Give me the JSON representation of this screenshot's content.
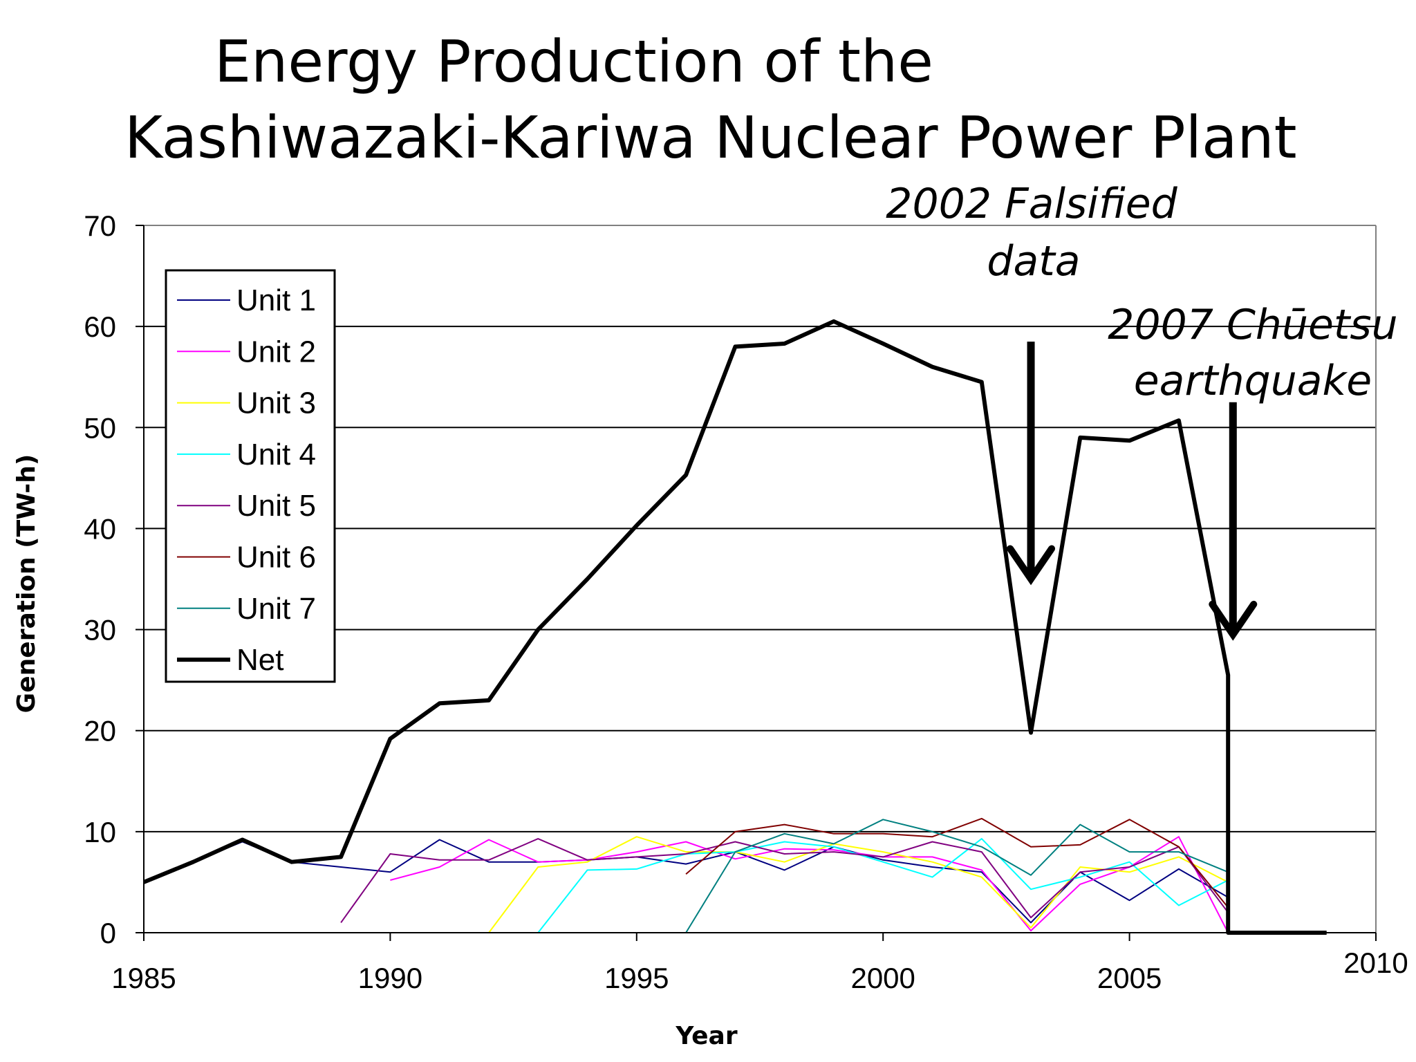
{
  "chart_data": {
    "type": "line",
    "title": [
      "Energy Production of the",
      "Kashiwazaki-Kariwa Nuclear Power Plant"
    ],
    "xlabel": "Year",
    "ylabel": "Generation (TW-h)",
    "xlim": [
      1985,
      2010
    ],
    "ylim": [
      0,
      70
    ],
    "x_ticks": [
      1985,
      1990,
      1995,
      2000,
      2005,
      2010
    ],
    "y_ticks": [
      0,
      10,
      20,
      30,
      40,
      50,
      60,
      70
    ],
    "grid": "horizontal",
    "legend_position": "top-left",
    "series": [
      {
        "name": "Unit 1",
        "color": "#000080",
        "width": 2,
        "points": [
          [
            1985,
            5
          ],
          [
            1986,
            7
          ],
          [
            1987,
            9
          ],
          [
            1988,
            7
          ],
          [
            1989,
            6.5
          ],
          [
            1990,
            6
          ],
          [
            1991,
            9.2
          ],
          [
            1992,
            7
          ],
          [
            1993,
            7
          ],
          [
            1994,
            7.2
          ],
          [
            1995,
            7.5
          ],
          [
            1996,
            6.8
          ],
          [
            1997,
            8
          ],
          [
            1998,
            6.2
          ],
          [
            1999,
            8.5
          ],
          [
            2000,
            7.2
          ],
          [
            2001,
            6.5
          ],
          [
            2002,
            6
          ],
          [
            2003,
            1
          ],
          [
            2004,
            6
          ],
          [
            2005,
            3.2
          ],
          [
            2006,
            6.3
          ],
          [
            2007,
            3.5
          ]
        ]
      },
      {
        "name": "Unit 2",
        "color": "#ff00ff",
        "width": 2,
        "points": [
          [
            1990,
            5.2
          ],
          [
            1991,
            6.5
          ],
          [
            1992,
            9.2
          ],
          [
            1993,
            7
          ],
          [
            1994,
            7.2
          ],
          [
            1995,
            8
          ],
          [
            1996,
            9
          ],
          [
            1997,
            7.3
          ],
          [
            1998,
            8.3
          ],
          [
            1999,
            8.2
          ],
          [
            2000,
            7.5
          ],
          [
            2001,
            7.5
          ],
          [
            2002,
            6.2
          ],
          [
            2003,
            0.2
          ],
          [
            2004,
            4.8
          ],
          [
            2005,
            6.5
          ],
          [
            2006,
            9.5
          ],
          [
            2007,
            0
          ]
        ]
      },
      {
        "name": "Unit 3",
        "color": "#ffff00",
        "width": 2,
        "points": [
          [
            1992,
            0
          ],
          [
            1993,
            6.5
          ],
          [
            1994,
            7
          ],
          [
            1995,
            9.5
          ],
          [
            1996,
            8
          ],
          [
            1997,
            8
          ],
          [
            1998,
            7
          ],
          [
            1999,
            8.8
          ],
          [
            2000,
            8
          ],
          [
            2001,
            7
          ],
          [
            2002,
            5.5
          ],
          [
            2003,
            0.5
          ],
          [
            2004,
            6.5
          ],
          [
            2005,
            6
          ],
          [
            2006,
            7.5
          ],
          [
            2007,
            5
          ]
        ]
      },
      {
        "name": "Unit 4",
        "color": "#00ffff",
        "width": 2,
        "points": [
          [
            1993,
            0
          ],
          [
            1994,
            6.2
          ],
          [
            1995,
            6.3
          ],
          [
            1996,
            7.8
          ],
          [
            1997,
            8
          ],
          [
            1998,
            9
          ],
          [
            1999,
            8.5
          ],
          [
            2000,
            7
          ],
          [
            2001,
            5.5
          ],
          [
            2002,
            9.3
          ],
          [
            2003,
            4.3
          ],
          [
            2004,
            5.5
          ],
          [
            2005,
            7
          ],
          [
            2006,
            2.7
          ],
          [
            2007,
            5.2
          ]
        ]
      },
      {
        "name": "Unit 5",
        "color": "#800080",
        "width": 2,
        "points": [
          [
            1989,
            1
          ],
          [
            1990,
            7.8
          ],
          [
            1991,
            7.2
          ],
          [
            1992,
            7.2
          ],
          [
            1993,
            9.3
          ],
          [
            1994,
            7.2
          ],
          [
            1995,
            7.5
          ],
          [
            1996,
            7.8
          ],
          [
            1997,
            9
          ],
          [
            1998,
            7.8
          ],
          [
            1999,
            8
          ],
          [
            2000,
            7.5
          ],
          [
            2001,
            9
          ],
          [
            2002,
            8
          ],
          [
            2003,
            1.5
          ],
          [
            2004,
            6
          ],
          [
            2005,
            6.5
          ],
          [
            2006,
            8.5
          ],
          [
            2007,
            2
          ]
        ]
      },
      {
        "name": "Unit 6",
        "color": "#800000",
        "width": 2,
        "points": [
          [
            1996,
            5.8
          ],
          [
            1997,
            10
          ],
          [
            1998,
            10.7
          ],
          [
            1999,
            9.8
          ],
          [
            2000,
            9.8
          ],
          [
            2001,
            9.5
          ],
          [
            2002,
            11.3
          ],
          [
            2003,
            8.5
          ],
          [
            2004,
            8.7
          ],
          [
            2005,
            11.2
          ],
          [
            2006,
            8.5
          ],
          [
            2007,
            2.5
          ]
        ]
      },
      {
        "name": "Unit 7",
        "color": "#008080",
        "width": 2,
        "points": [
          [
            1996,
            0
          ],
          [
            1997,
            8
          ],
          [
            1998,
            9.8
          ],
          [
            1999,
            8.8
          ],
          [
            2000,
            11.2
          ],
          [
            2001,
            10
          ],
          [
            2002,
            8.5
          ],
          [
            2003,
            5.7
          ],
          [
            2004,
            10.7
          ],
          [
            2005,
            8
          ],
          [
            2006,
            8
          ],
          [
            2007,
            6
          ]
        ]
      },
      {
        "name": "Net",
        "color": "#000000",
        "width": 6,
        "points": [
          [
            1985,
            5
          ],
          [
            1986,
            7
          ],
          [
            1987,
            9.2
          ],
          [
            1988,
            7
          ],
          [
            1989,
            7.5
          ],
          [
            1990,
            19.2
          ],
          [
            1991,
            22.7
          ],
          [
            1992,
            23
          ],
          [
            1993,
            30
          ],
          [
            1994,
            35
          ],
          [
            1995,
            40.3
          ],
          [
            1996,
            45.3
          ],
          [
            1997,
            58
          ],
          [
            1998,
            58.3
          ],
          [
            1999,
            60.5
          ],
          [
            2000,
            58.3
          ],
          [
            2001,
            56
          ],
          [
            2002,
            54.5
          ],
          [
            2003,
            19.8
          ],
          [
            2004,
            49
          ],
          [
            2005,
            48.7
          ],
          [
            2006,
            50.7
          ],
          [
            2007,
            25.5
          ],
          [
            2007,
            0
          ],
          [
            2008,
            0
          ],
          [
            2009,
            0
          ]
        ]
      }
    ],
    "annotations": [
      {
        "text": [
          "2002 Falsified",
          "data"
        ],
        "arrow_x": 2003,
        "arrow_top_y": 58.5,
        "arrow_tip_y": 35
      },
      {
        "text": [
          "2007 Chūetsu",
          "earthquake"
        ],
        "arrow_x": 2007.1,
        "arrow_top_y": 52.5,
        "arrow_tip_y": 29.5
      }
    ]
  }
}
